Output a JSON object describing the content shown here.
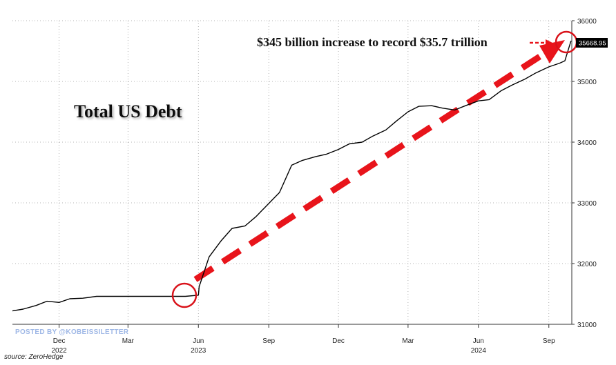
{
  "chart_data": {
    "type": "line",
    "title": "Total US Debt",
    "annotation": "$345 billion increase to record $35.7 trillion",
    "last_value_label": "35668.95",
    "watermark": "POSTED BY @KOBEISSILETTER",
    "source": "source: ZeroHedge",
    "ylim": [
      31000,
      36000
    ],
    "y_ticks": [
      31000,
      32000,
      33000,
      34000,
      35000,
      36000
    ],
    "x_ticks": [
      "Dec",
      "Mar",
      "Jun",
      "Sep",
      "Dec",
      "Mar",
      "Jun",
      "Sep"
    ],
    "x_years": [
      "2022",
      "2023",
      "2024"
    ],
    "grid": true,
    "colors": {
      "line": "#000000",
      "arrow": "#e8141b",
      "circle": "#d9121a"
    },
    "series": [
      {
        "x": [
          "2022-10-01",
          "2022-10-15",
          "2022-11-01",
          "2022-11-15",
          "2022-12-01",
          "2022-12-15",
          "2023-01-01",
          "2023-01-19",
          "2023-02-15",
          "2023-03-15",
          "2023-04-15",
          "2023-05-15",
          "2023-06-01",
          "2023-06-02",
          "2023-06-15",
          "2023-07-01",
          "2023-07-15",
          "2023-08-01",
          "2023-08-15",
          "2023-09-01",
          "2023-09-15",
          "2023-10-01",
          "2023-10-15",
          "2023-11-01",
          "2023-11-15",
          "2023-12-01",
          "2023-12-15",
          "2024-01-01",
          "2024-01-15",
          "2024-02-01",
          "2024-02-15",
          "2024-03-01",
          "2024-03-15",
          "2024-04-01",
          "2024-04-15",
          "2024-05-01",
          "2024-05-15",
          "2024-06-01",
          "2024-06-15",
          "2024-07-01",
          "2024-07-15",
          "2024-08-01",
          "2024-08-15",
          "2024-09-01",
          "2024-09-15",
          "2024-09-22",
          "2024-09-30"
        ],
        "values": [
          31220,
          31250,
          31310,
          31380,
          31360,
          31420,
          31430,
          31460,
          31460,
          31460,
          31460,
          31460,
          31480,
          31620,
          32110,
          32380,
          32580,
          32620,
          32770,
          32990,
          33170,
          33620,
          33700,
          33760,
          33800,
          33880,
          33970,
          34000,
          34100,
          34200,
          34350,
          34500,
          34590,
          34600,
          34560,
          34530,
          34600,
          34680,
          34700,
          34850,
          34940,
          35040,
          35140,
          35240,
          35300,
          35340,
          35668.95
        ]
      }
    ]
  }
}
